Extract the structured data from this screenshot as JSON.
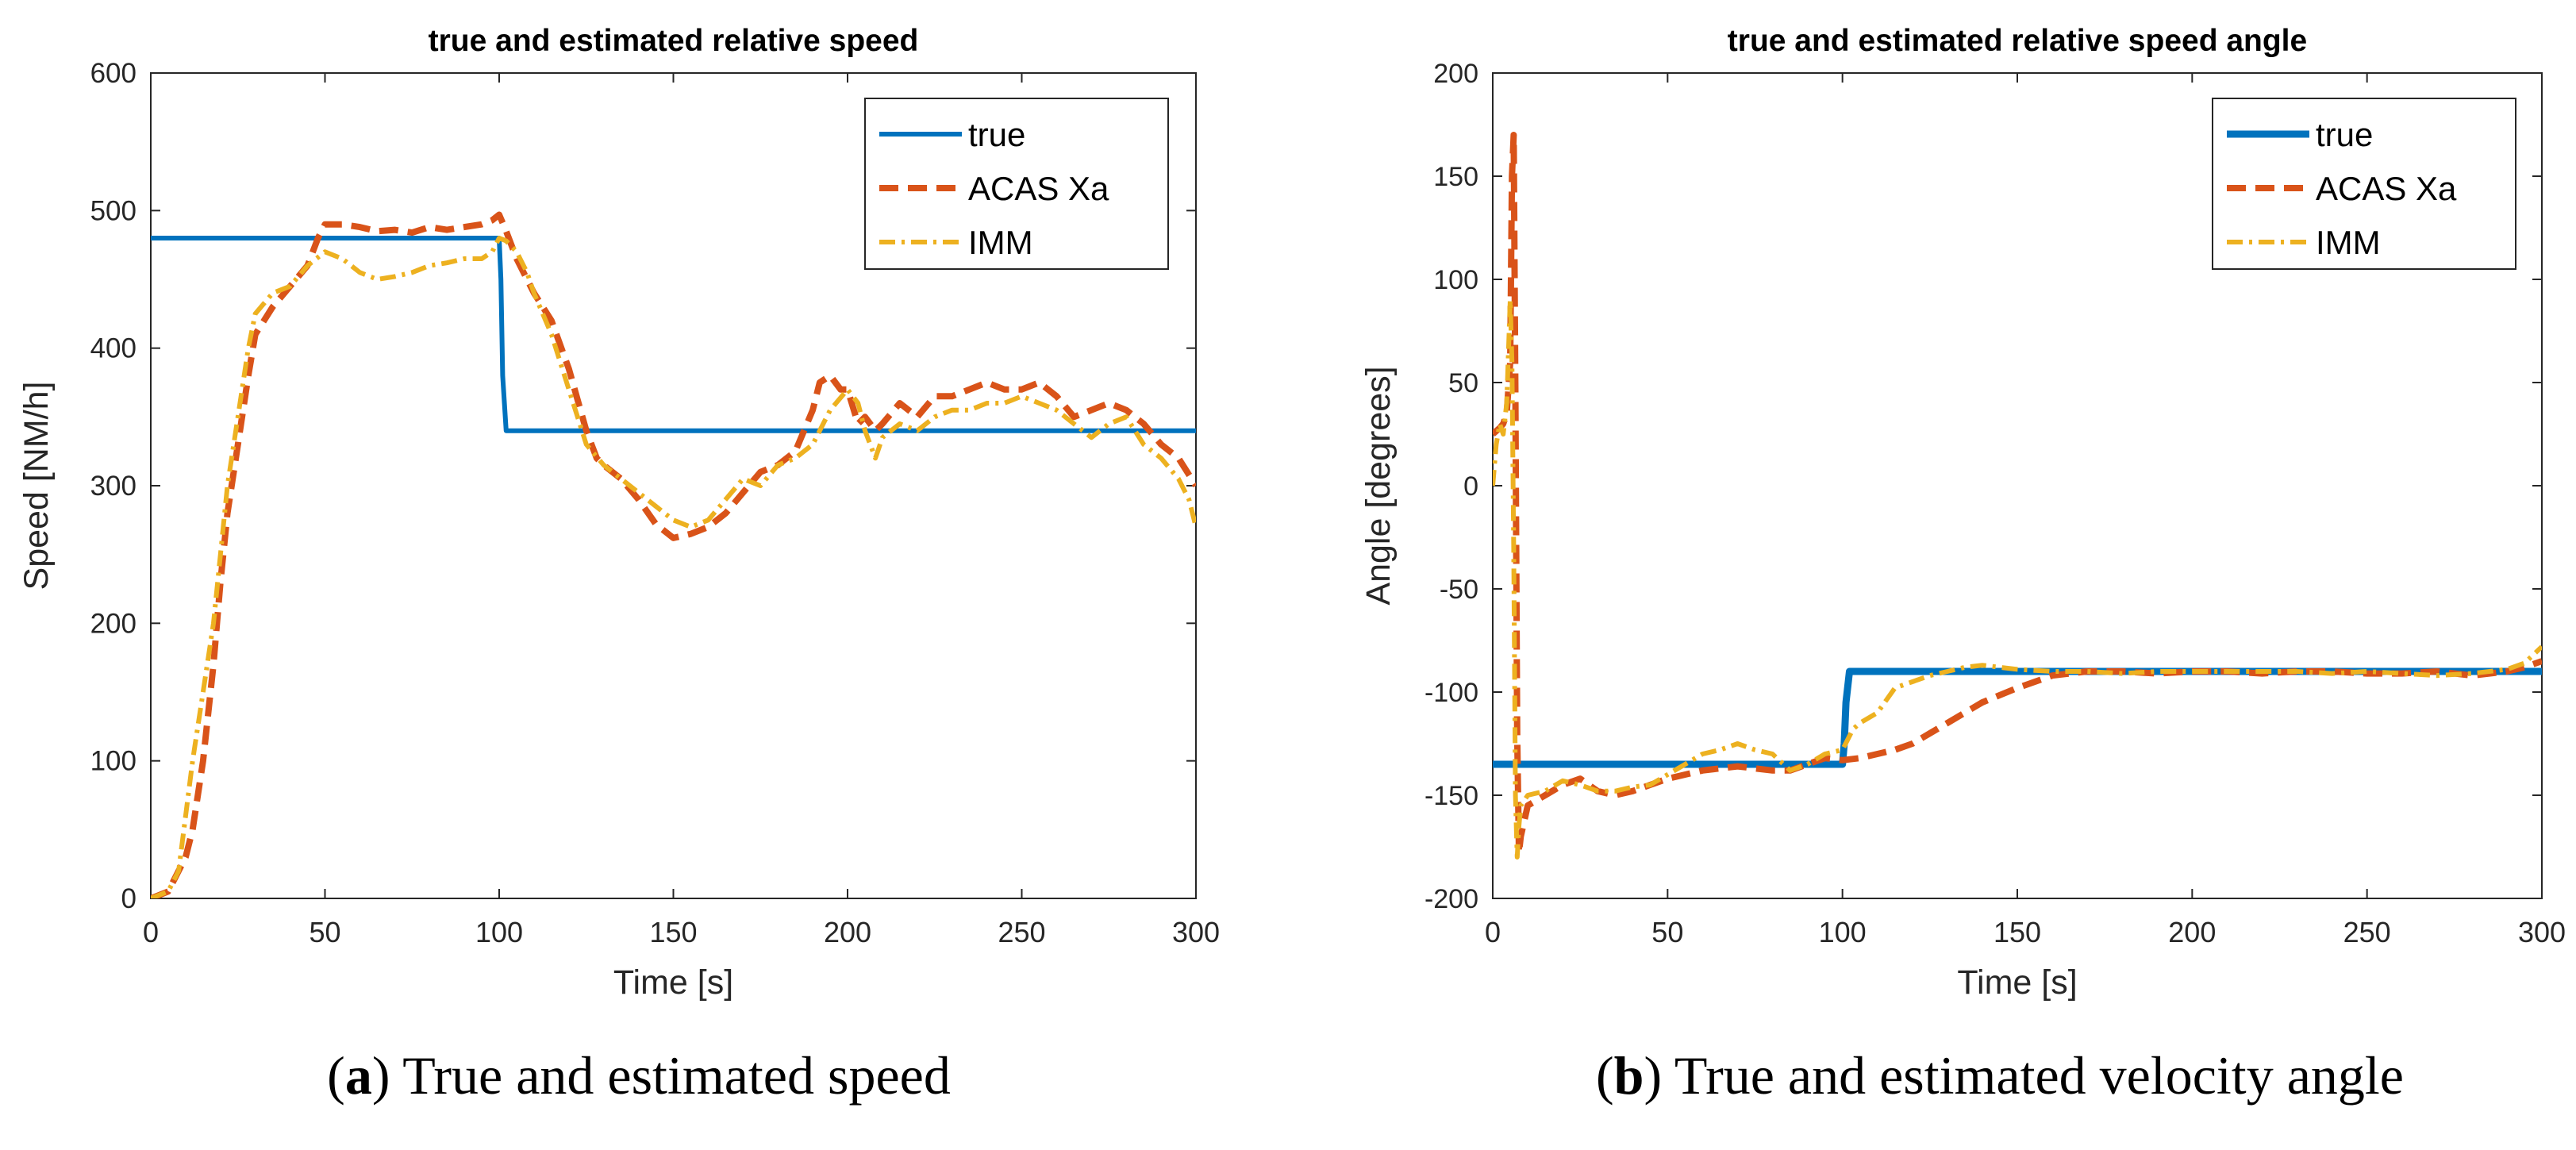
{
  "chart_data": [
    {
      "type": "line",
      "title": "true and estimated relative speed",
      "xlabel": "Time [s]",
      "ylabel": "Speed [NM/h]",
      "xlim": [
        0,
        300
      ],
      "ylim": [
        0,
        600
      ],
      "xticks": [
        0,
        50,
        100,
        150,
        200,
        250,
        300
      ],
      "yticks": [
        0,
        100,
        200,
        300,
        400,
        500,
        600
      ],
      "xtick_labels": [
        "0",
        "50",
        "100",
        "150",
        "200",
        "250",
        "300"
      ],
      "ytick_labels": [
        "0",
        "100",
        "200",
        "300",
        "400",
        "500",
        "600"
      ],
      "grid": false,
      "legend_position": "top-right",
      "series": [
        {
          "name": "true",
          "color": "#0072BD",
          "style": "solid",
          "x": [
            0,
            100,
            100.5,
            101,
            102,
            300
          ],
          "y": [
            480,
            480,
            450,
            380,
            340,
            340
          ]
        },
        {
          "name": "ACAS Xa",
          "color": "#D95319",
          "style": "dashed",
          "x": [
            0,
            5,
            10,
            12,
            15,
            18,
            20,
            22,
            25,
            28,
            30,
            35,
            40,
            45,
            48,
            50,
            55,
            60,
            65,
            70,
            75,
            80,
            85,
            90,
            95,
            98,
            100,
            102,
            105,
            108,
            110,
            115,
            120,
            125,
            128,
            130,
            135,
            140,
            145,
            150,
            155,
            160,
            165,
            170,
            175,
            180,
            185,
            190,
            192,
            195,
            198,
            200,
            203,
            205,
            208,
            210,
            215,
            220,
            225,
            230,
            235,
            240,
            245,
            250,
            255,
            260,
            265,
            270,
            275,
            280,
            285,
            290,
            295,
            300
          ],
          "y": [
            0,
            5,
            30,
            50,
            100,
            170,
            230,
            280,
            330,
            380,
            410,
            430,
            445,
            460,
            480,
            490,
            490,
            488,
            485,
            486,
            484,
            488,
            486,
            488,
            490,
            493,
            497,
            485,
            465,
            450,
            440,
            420,
            385,
            340,
            320,
            315,
            305,
            290,
            272,
            262,
            265,
            270,
            280,
            295,
            310,
            315,
            325,
            355,
            375,
            380,
            370,
            370,
            345,
            350,
            340,
            345,
            360,
            350,
            365,
            365,
            370,
            375,
            370,
            370,
            375,
            365,
            350,
            355,
            360,
            355,
            345,
            330,
            320,
            300
          ]
        },
        {
          "name": "IMM",
          "color": "#EDB120",
          "style": "dashdot",
          "x": [
            0,
            5,
            8,
            10,
            12,
            15,
            18,
            20,
            22,
            25,
            28,
            30,
            35,
            40,
            45,
            50,
            55,
            60,
            65,
            70,
            75,
            80,
            85,
            90,
            95,
            98,
            100,
            102,
            105,
            108,
            110,
            115,
            120,
            125,
            130,
            135,
            140,
            145,
            150,
            155,
            160,
            165,
            170,
            175,
            180,
            185,
            190,
            195,
            200,
            203,
            205,
            208,
            210,
            215,
            220,
            225,
            230,
            235,
            240,
            245,
            250,
            255,
            260,
            265,
            270,
            275,
            280,
            285,
            290,
            295,
            298,
            300
          ],
          "y": [
            0,
            5,
            20,
            60,
            100,
            150,
            200,
            250,
            300,
            350,
            400,
            425,
            440,
            445,
            460,
            470,
            465,
            455,
            450,
            452,
            455,
            460,
            462,
            465,
            465,
            470,
            480,
            478,
            470,
            455,
            440,
            410,
            370,
            330,
            315,
            305,
            295,
            285,
            275,
            270,
            275,
            290,
            305,
            300,
            315,
            320,
            330,
            355,
            370,
            360,
            340,
            320,
            335,
            345,
            340,
            350,
            355,
            355,
            360,
            360,
            365,
            360,
            355,
            345,
            335,
            345,
            350,
            330,
            320,
            305,
            290,
            270
          ]
        }
      ]
    },
    {
      "type": "line",
      "title": "true and estimated relative speed angle",
      "xlabel": "Time [s]",
      "ylabel": "Angle [degrees]",
      "xlim": [
        0,
        300
      ],
      "ylim": [
        -200,
        200
      ],
      "xticks": [
        0,
        50,
        100,
        150,
        200,
        250,
        300
      ],
      "yticks": [
        -200,
        -150,
        -100,
        -50,
        0,
        50,
        100,
        150,
        200
      ],
      "xtick_labels": [
        "0",
        "50",
        "100",
        "150",
        "200",
        "250",
        "300"
      ],
      "ytick_labels": [
        "-200",
        "-150",
        "-100",
        "-50",
        "0",
        "50",
        "100",
        "150",
        "200"
      ],
      "grid": false,
      "legend_position": "top-right",
      "series": [
        {
          "name": "true",
          "color": "#0072BD",
          "style": "solid",
          "x": [
            0,
            100,
            100.5,
            101,
            102,
            300
          ],
          "y": [
            -135,
            -135,
            -125,
            -105,
            -90,
            -90
          ]
        },
        {
          "name": "ACAS Xa",
          "color": "#D95319",
          "style": "dashed",
          "x": [
            0,
            2,
            3,
            4,
            5,
            5.5,
            6,
            6.5,
            7,
            7.5,
            8,
            10,
            15,
            20,
            25,
            30,
            35,
            40,
            45,
            50,
            55,
            60,
            65,
            70,
            75,
            80,
            85,
            90,
            95,
            100,
            105,
            110,
            115,
            120,
            125,
            130,
            135,
            140,
            150,
            160,
            170,
            180,
            190,
            200,
            210,
            220,
            230,
            240,
            250,
            260,
            270,
            280,
            290,
            295,
            300
          ],
          "y": [
            25,
            28,
            30,
            35,
            60,
            150,
            170,
            40,
            -120,
            -178,
            -170,
            -155,
            -150,
            -145,
            -142,
            -148,
            -150,
            -148,
            -145,
            -142,
            -140,
            -138,
            -137,
            -136,
            -137,
            -138,
            -138,
            -135,
            -132,
            -133,
            -132,
            -130,
            -128,
            -125,
            -120,
            -115,
            -110,
            -105,
            -98,
            -92,
            -90,
            -90,
            -91,
            -90,
            -90,
            -91,
            -90,
            -90,
            -91,
            -91,
            -90,
            -92,
            -90,
            -88,
            -85
          ]
        },
        {
          "name": "IMM",
          "color": "#EDB120",
          "style": "dashdot",
          "x": [
            0,
            1,
            2,
            3,
            4,
            5,
            5.5,
            6,
            6.5,
            7,
            7.5,
            8,
            10,
            15,
            20,
            25,
            30,
            35,
            40,
            45,
            50,
            55,
            60,
            65,
            70,
            75,
            80,
            85,
            90,
            95,
            100,
            103,
            105,
            110,
            115,
            120,
            125,
            130,
            135,
            140,
            150,
            160,
            170,
            180,
            190,
            200,
            210,
            220,
            230,
            240,
            250,
            260,
            270,
            280,
            290,
            295,
            300
          ],
          "y": [
            0,
            20,
            30,
            25,
            40,
            90,
            60,
            -30,
            -150,
            -180,
            -165,
            -155,
            -150,
            -148,
            -143,
            -145,
            -148,
            -148,
            -146,
            -145,
            -140,
            -135,
            -130,
            -128,
            -125,
            -128,
            -130,
            -138,
            -135,
            -130,
            -128,
            -118,
            -115,
            -110,
            -98,
            -95,
            -92,
            -90,
            -88,
            -87,
            -89,
            -90,
            -90,
            -91,
            -90,
            -90,
            -90,
            -90,
            -90,
            -91,
            -90,
            -91,
            -92,
            -91,
            -89,
            -86,
            -78
          ]
        }
      ]
    }
  ],
  "captions": [
    {
      "letter": "a",
      "text": " True and estimated speed"
    },
    {
      "letter": "b",
      "text": " True and estimated velocity angle"
    }
  ]
}
